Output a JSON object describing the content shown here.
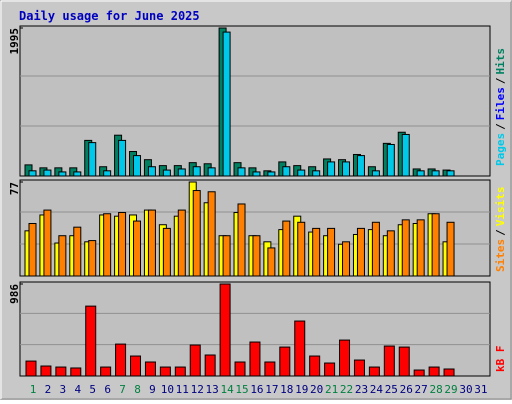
{
  "title": "Daily usage for June 2025",
  "legend_separator": "/",
  "label_colors": [
    "#008040",
    "#000080",
    "#000080",
    "#000080",
    "#000080",
    "#000080",
    "#008040",
    "#008040",
    "#000080",
    "#000080",
    "#000080",
    "#000080",
    "#000080",
    "#008040",
    "#008040",
    "#000080",
    "#000080",
    "#000080",
    "#000080",
    "#000080",
    "#008040",
    "#008040",
    "#000080",
    "#000080",
    "#000080",
    "#000080",
    "#000080",
    "#008040",
    "#008040",
    "#000080",
    "#000080"
  ],
  "chart_data": [
    {
      "type": "bar",
      "ylim": [
        0,
        1995
      ],
      "yticks": [
        1995
      ],
      "series": [
        {
          "name": "Pages",
          "color": "#00c8e8",
          "values": [
            70,
            80,
            55,
            55,
            450,
            70,
            480,
            275,
            125,
            80,
            95,
            125,
            110,
            1940,
            110,
            55,
            55,
            125,
            80,
            70,
            190,
            190,
            275,
            70,
            425,
            560,
            70,
            70,
            70,
            null,
            null
          ]
        },
        {
          "name": "Files",
          "color": "#0000ff",
          "values": [
            null,
            null,
            null,
            null,
            null,
            null,
            null,
            null,
            null,
            null,
            null,
            null,
            null,
            null,
            null,
            null,
            null,
            null,
            null,
            null,
            null,
            null,
            null,
            null,
            null,
            null,
            null,
            null,
            null,
            null,
            null
          ]
        },
        {
          "name": "Hits",
          "color": "#008060",
          "values": [
            150,
            110,
            110,
            110,
            480,
            125,
            550,
            330,
            220,
            140,
            140,
            180,
            165,
            1995,
            180,
            110,
            70,
            190,
            140,
            125,
            230,
            220,
            290,
            125,
            440,
            590,
            95,
            95,
            80,
            null,
            null
          ]
        }
      ]
    },
    {
      "type": "bar",
      "ylim": [
        0,
        77
      ],
      "yticks": [
        77
      ],
      "series": [
        {
          "name": "Sites",
          "color": "#ff8000",
          "values": [
            43,
            54,
            33,
            40,
            29,
            51,
            52,
            45,
            54,
            39,
            54,
            70,
            69,
            33,
            59,
            33,
            23,
            45,
            44,
            39,
            39,
            28,
            39,
            44,
            37,
            46,
            46,
            51,
            44,
            null,
            null
          ]
        },
        {
          "name": "Visits",
          "color": "#ffff00",
          "values": [
            37,
            50,
            27,
            33,
            28,
            50,
            49,
            50,
            54,
            42,
            49,
            77,
            60,
            33,
            52,
            33,
            28,
            38,
            49,
            36,
            33,
            26,
            34,
            38,
            33,
            42,
            43,
            51,
            28,
            null,
            null
          ]
        }
      ]
    },
    {
      "type": "bar",
      "ylim": [
        0,
        986
      ],
      "yticks": [
        986
      ],
      "categories": [
        "1",
        "2",
        "3",
        "4",
        "5",
        "6",
        "7",
        "8",
        "9",
        "10",
        "11",
        "12",
        "13",
        "14",
        "15",
        "16",
        "17",
        "18",
        "19",
        "20",
        "21",
        "22",
        "23",
        "24",
        "25",
        "26",
        "27",
        "28",
        "29",
        "30",
        "31"
      ],
      "series": [
        {
          "name": "kB F",
          "color": "#ff0000",
          "values": [
            160,
            107,
            96,
            86,
            749,
            96,
            342,
            214,
            150,
            96,
            96,
            332,
            225,
            986,
            150,
            364,
            150,
            310,
            589,
            214,
            139,
            385,
            171,
            96,
            321,
            310,
            64,
            96,
            75,
            null,
            null
          ]
        }
      ]
    }
  ]
}
